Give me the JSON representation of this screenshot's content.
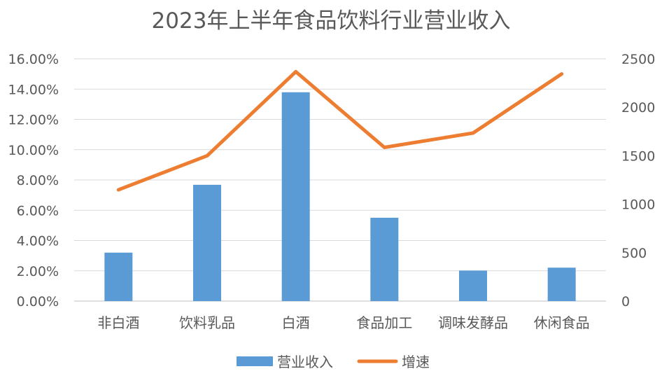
{
  "chart_data": {
    "type": "bar",
    "title": "2023年上半年食品饮料行业营业收入",
    "categories": [
      "非白酒",
      "饮料乳品",
      "白酒",
      "食品加工",
      "调味发酵品",
      "休闲食品"
    ],
    "series": [
      {
        "name": "营业收入",
        "type": "bar",
        "axis": "right",
        "color": "#5B9BD5",
        "values": [
          500,
          1200,
          2155,
          860,
          315,
          345
        ]
      },
      {
        "name": "增速",
        "type": "line",
        "axis": "left",
        "color": "#ED7D31",
        "values": [
          0.0735,
          0.096,
          0.1515,
          0.1015,
          0.111,
          0.15
        ]
      }
    ],
    "y_left": {
      "min": 0,
      "max": 0.16,
      "ticks": [
        "0.00%",
        "2.00%",
        "4.00%",
        "6.00%",
        "8.00%",
        "10.00%",
        "12.00%",
        "14.00%",
        "16.00%"
      ]
    },
    "y_right": {
      "min": 0,
      "max": 2500,
      "ticks": [
        "0",
        "500",
        "1000",
        "1500",
        "2000",
        "2500"
      ]
    },
    "grid": true,
    "legend": "bottom"
  }
}
